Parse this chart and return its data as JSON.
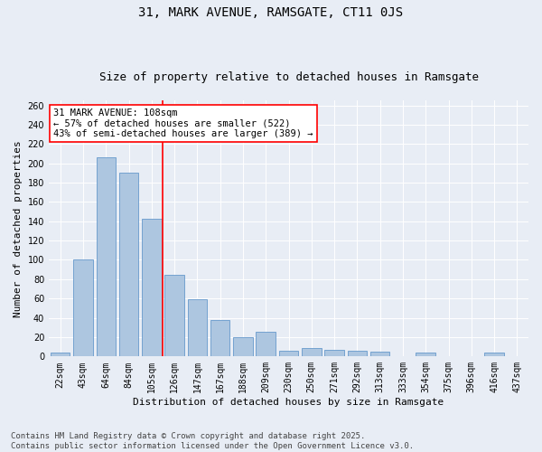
{
  "title_line1": "31, MARK AVENUE, RAMSGATE, CT11 0JS",
  "title_line2": "Size of property relative to detached houses in Ramsgate",
  "xlabel": "Distribution of detached houses by size in Ramsgate",
  "ylabel": "Number of detached properties",
  "categories": [
    "22sqm",
    "43sqm",
    "64sqm",
    "84sqm",
    "105sqm",
    "126sqm",
    "147sqm",
    "167sqm",
    "188sqm",
    "209sqm",
    "230sqm",
    "250sqm",
    "271sqm",
    "292sqm",
    "313sqm",
    "333sqm",
    "354sqm",
    "375sqm",
    "396sqm",
    "416sqm",
    "437sqm"
  ],
  "values": [
    4,
    100,
    206,
    190,
    143,
    85,
    59,
    38,
    20,
    26,
    6,
    9,
    7,
    6,
    5,
    0,
    4,
    0,
    0,
    4,
    0
  ],
  "bar_color": "#adc6e0",
  "bar_edge_color": "#6699cc",
  "vline_x_index": 4,
  "annotation_text": "31 MARK AVENUE: 108sqm\n← 57% of detached houses are smaller (522)\n43% of semi-detached houses are larger (389) →",
  "annotation_box_color": "white",
  "annotation_box_edge_color": "red",
  "vline_color": "red",
  "ylim": [
    0,
    265
  ],
  "yticks": [
    0,
    20,
    40,
    60,
    80,
    100,
    120,
    140,
    160,
    180,
    200,
    220,
    240,
    260
  ],
  "background_color": "#e8edf5",
  "footer_text": "Contains HM Land Registry data © Crown copyright and database right 2025.\nContains public sector information licensed under the Open Government Licence v3.0.",
  "title_fontsize": 10,
  "subtitle_fontsize": 9,
  "axis_label_fontsize": 8,
  "tick_fontsize": 7,
  "annotation_fontsize": 7.5,
  "footer_fontsize": 6.5
}
